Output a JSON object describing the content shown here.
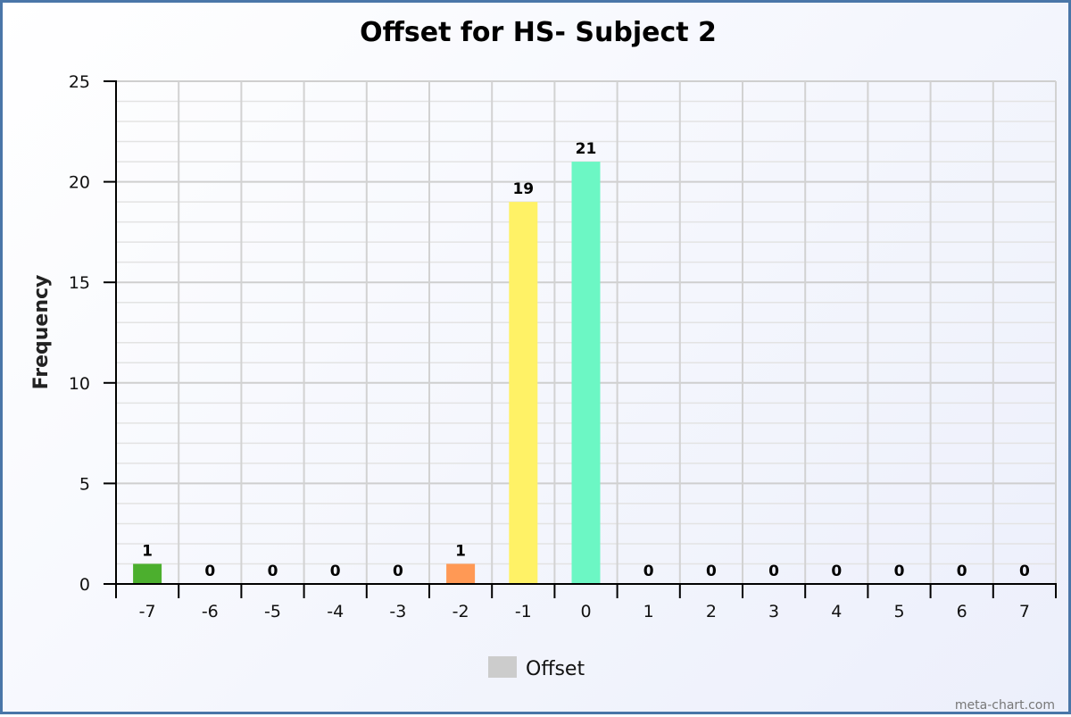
{
  "chart_data": {
    "type": "bar",
    "title": "Offset for HS- Subject 2",
    "xlabel": "",
    "ylabel": "Frequency",
    "ylim": [
      0,
      25
    ],
    "yticks": [
      0,
      5,
      10,
      15,
      20,
      25
    ],
    "categories": [
      "-7",
      "-6",
      "-5",
      "-4",
      "-3",
      "-2",
      "-1",
      "0",
      "1",
      "2",
      "3",
      "4",
      "5",
      "6",
      "7"
    ],
    "series": [
      {
        "name": "Offset",
        "values": [
          1,
          0,
          0,
          0,
          0,
          1,
          19,
          21,
          0,
          0,
          0,
          0,
          0,
          0,
          0
        ]
      }
    ],
    "bar_colors": [
      "#4caf2e",
      "#cccccc",
      "#cccccc",
      "#cccccc",
      "#cccccc",
      "#ff9955",
      "#fff266",
      "#6cf7c4",
      "#cccccc",
      "#cccccc",
      "#cccccc",
      "#cccccc",
      "#cccccc",
      "#cccccc",
      "#cccccc"
    ],
    "legend_color": "#cccccc",
    "grid": true,
    "legend_position": "bottom-center"
  },
  "credit": "meta-chart.com"
}
